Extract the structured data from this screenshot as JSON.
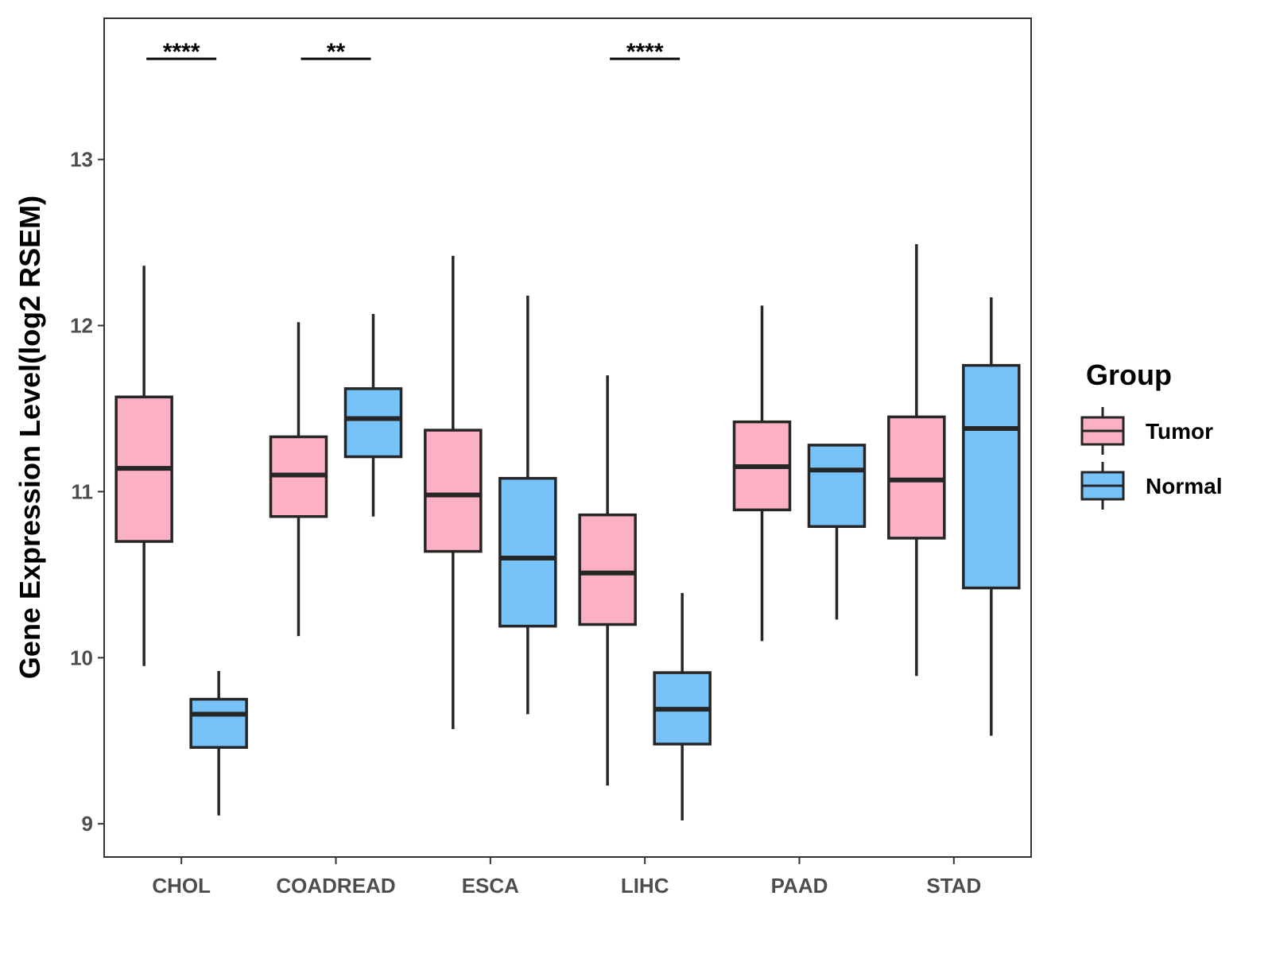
{
  "chart_data": {
    "type": "boxplot",
    "ylabel": "Gene Expression Level(log2 RSEM)",
    "xlabel": "",
    "ylim": [
      8.8,
      13.85
    ],
    "yticks": [
      9,
      10,
      11,
      12,
      13
    ],
    "categories": [
      "CHOL",
      "COADREAD",
      "ESCA",
      "LIHC",
      "PAAD",
      "STAD"
    ],
    "legend": {
      "title": "Group",
      "position": "right",
      "entries": [
        {
          "name": "Tumor",
          "color": "#FBB1C3"
        },
        {
          "name": "Normal",
          "color": "#77C2F8"
        }
      ]
    },
    "series": [
      {
        "name": "Tumor",
        "color": "#FBB1C3",
        "boxes": [
          {
            "category": "CHOL",
            "whisker_low": 9.95,
            "q1": 10.7,
            "median": 11.14,
            "q3": 11.57,
            "whisker_high": 12.36
          },
          {
            "category": "COADREAD",
            "whisker_low": 10.13,
            "q1": 10.85,
            "median": 11.1,
            "q3": 11.33,
            "whisker_high": 12.02
          },
          {
            "category": "ESCA",
            "whisker_low": 9.57,
            "q1": 10.64,
            "median": 10.98,
            "q3": 11.37,
            "whisker_high": 12.42
          },
          {
            "category": "LIHC",
            "whisker_low": 9.23,
            "q1": 10.2,
            "median": 10.51,
            "q3": 10.86,
            "whisker_high": 11.7
          },
          {
            "category": "PAAD",
            "whisker_low": 10.1,
            "q1": 10.89,
            "median": 11.15,
            "q3": 11.42,
            "whisker_high": 12.12
          },
          {
            "category": "STAD",
            "whisker_low": 9.89,
            "q1": 10.72,
            "median": 11.07,
            "q3": 11.45,
            "whisker_high": 12.49
          }
        ]
      },
      {
        "name": "Normal",
        "color": "#77C2F8",
        "boxes": [
          {
            "category": "CHOL",
            "whisker_low": 9.05,
            "q1": 9.46,
            "median": 9.66,
            "q3": 9.75,
            "whisker_high": 9.92
          },
          {
            "category": "COADREAD",
            "whisker_low": 10.85,
            "q1": 11.21,
            "median": 11.44,
            "q3": 11.62,
            "whisker_high": 12.07
          },
          {
            "category": "ESCA",
            "whisker_low": 9.66,
            "q1": 10.19,
            "median": 10.6,
            "q3": 11.08,
            "whisker_high": 12.18
          },
          {
            "category": "LIHC",
            "whisker_low": 9.02,
            "q1": 9.48,
            "median": 9.69,
            "q3": 9.91,
            "whisker_high": 10.39
          },
          {
            "category": "PAAD",
            "whisker_low": 10.23,
            "q1": 10.79,
            "median": 11.13,
            "q3": 11.28,
            "whisker_high": 11.28
          },
          {
            "category": "STAD",
            "whisker_low": 9.53,
            "q1": 10.42,
            "median": 11.38,
            "q3": 11.76,
            "whisker_high": 12.17
          }
        ]
      }
    ],
    "significance": [
      {
        "category": "CHOL",
        "label": "****"
      },
      {
        "category": "COADREAD",
        "label": "**"
      },
      {
        "category": "LIHC",
        "label": "****"
      }
    ]
  }
}
